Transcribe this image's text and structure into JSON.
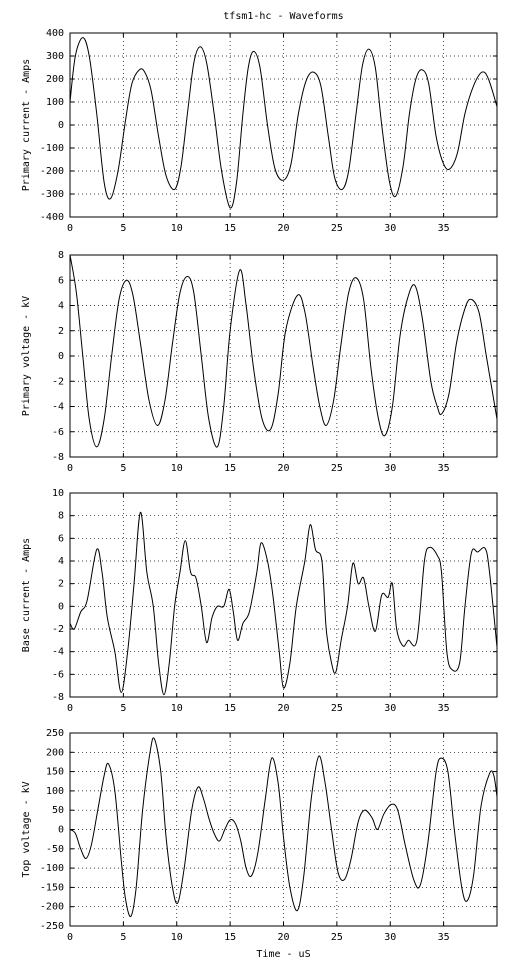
{
  "chart_data": [
    {
      "type": "line",
      "title": "tfsm1-hc - Waveforms",
      "ylabel": "Primary current - Amps",
      "color": "#000000",
      "grid": true,
      "xlim": [
        0,
        40
      ],
      "xticks": [
        0,
        5,
        10,
        15,
        20,
        25,
        30,
        35
      ],
      "ylim": [
        -400,
        400
      ],
      "yticks": [
        -400,
        -300,
        -200,
        -100,
        0,
        100,
        200,
        300,
        400
      ],
      "x": [
        0,
        0.5,
        1.2,
        1.8,
        2.5,
        3.2,
        3.8,
        4.5,
        5.2,
        5.8,
        6.5,
        7.0,
        7.6,
        8.3,
        9.0,
        9.8,
        10.4,
        11.0,
        11.6,
        12.2,
        12.8,
        13.5,
        14.2,
        15.0,
        15.6,
        16.2,
        16.7,
        17.2,
        17.8,
        18.5,
        19.2,
        20.0,
        20.7,
        21.4,
        22.1,
        22.8,
        23.5,
        24.2,
        24.8,
        25.5,
        26.1,
        26.8,
        27.4,
        28.0,
        28.6,
        29.2,
        29.9,
        30.5,
        31.2,
        31.8,
        32.4,
        33.0,
        33.6,
        34.3,
        35.0,
        35.6,
        36.3,
        37.0,
        37.8,
        38.6,
        39.2,
        40
      ],
      "values": [
        100,
        300,
        380,
        300,
        50,
        -250,
        -320,
        -200,
        20,
        180,
        240,
        230,
        150,
        -50,
        -220,
        -280,
        -180,
        50,
        270,
        340,
        270,
        50,
        -200,
        -360,
        -250,
        50,
        250,
        320,
        250,
        0,
        -190,
        -240,
        -170,
        50,
        190,
        230,
        170,
        -50,
        -230,
        -280,
        -200,
        50,
        260,
        330,
        250,
        0,
        -240,
        -310,
        -180,
        50,
        200,
        240,
        180,
        -50,
        -170,
        -190,
        -120,
        50,
        170,
        230,
        200,
        80
      ]
    },
    {
      "type": "line",
      "ylabel": "Primary voltage - kV",
      "color": "#000000",
      "grid": true,
      "xlim": [
        0,
        40
      ],
      "xticks": [
        0,
        5,
        10,
        15,
        20,
        25,
        30,
        35
      ],
      "ylim": [
        -8,
        8
      ],
      "yticks": [
        -8,
        -6,
        -4,
        -2,
        0,
        2,
        4,
        6,
        8
      ],
      "x": [
        0,
        0.6,
        1.2,
        1.8,
        2.5,
        3.2,
        3.9,
        4.6,
        5.3,
        5.9,
        6.6,
        7.4,
        8.2,
        8.9,
        9.6,
        10.3,
        11.0,
        11.6,
        12.3,
        13.0,
        13.8,
        14.4,
        15.0,
        15.9,
        16.5,
        17.2,
        18.0,
        18.8,
        19.5,
        20.2,
        21.3,
        22.0,
        22.8,
        23.4,
        24.0,
        24.7,
        25.4,
        26.1,
        26.8,
        27.5,
        28.2,
        28.9,
        29.5,
        30.2,
        30.9,
        31.6,
        32.3,
        33.0,
        33.8,
        34.4,
        34.8,
        35.5,
        36.2,
        36.9,
        37.5,
        38.3,
        39.0,
        39.6,
        40
      ],
      "values": [
        8,
        5,
        0,
        -5,
        -7.2,
        -5,
        0,
        4.5,
        6,
        4.8,
        1,
        -3.5,
        -5.5,
        -3.5,
        1,
        5,
        6.3,
        5,
        0,
        -5,
        -7.2,
        -4,
        2,
        6.8,
        4,
        -1,
        -5,
        -5.8,
        -3,
        2,
        4.8,
        3.5,
        -1,
        -4,
        -5.5,
        -3.5,
        1,
        5,
        6.2,
        4.5,
        -1,
        -5,
        -6.3,
        -4,
        1.5,
        4.5,
        5.6,
        3,
        -2,
        -4,
        -4.6,
        -3,
        1,
        3.5,
        4.5,
        3.5,
        0,
        -3,
        -5
      ]
    },
    {
      "type": "line",
      "ylabel": "Base current - Amps",
      "color": "#000000",
      "grid": true,
      "xlim": [
        0,
        40
      ],
      "xticks": [
        0,
        5,
        10,
        15,
        20,
        25,
        30,
        35
      ],
      "ylim": [
        -8,
        10
      ],
      "yticks": [
        -8,
        -6,
        -4,
        -2,
        0,
        2,
        4,
        6,
        8,
        10
      ],
      "x": [
        0,
        0.4,
        1.0,
        1.6,
        2.5,
        3.0,
        3.5,
        4.2,
        4.8,
        5.4,
        6.0,
        6.6,
        7.2,
        7.8,
        8.3,
        8.8,
        9.3,
        9.8,
        10.3,
        10.8,
        11.3,
        11.8,
        12.3,
        12.8,
        13.3,
        13.8,
        14.4,
        14.9,
        15.3,
        15.7,
        16.2,
        16.8,
        17.5,
        17.9,
        18.5,
        19.0,
        19.6,
        20.0,
        20.6,
        21.2,
        22.0,
        22.5,
        23.0,
        23.6,
        24.0,
        24.5,
        24.9,
        25.4,
        26.0,
        26.5,
        27.0,
        27.5,
        28.0,
        28.6,
        29.2,
        29.8,
        30.2,
        30.6,
        31.2,
        31.7,
        32.5,
        33.2,
        33.7,
        34.4,
        34.8,
        35.3,
        35.8,
        36.5,
        37.0,
        37.6,
        38.2,
        38.9,
        39.3,
        40
      ],
      "values": [
        -1.5,
        -2,
        -0.5,
        0.5,
        5,
        3,
        -1,
        -4,
        -7.6,
        -4,
        2,
        8.3,
        3,
        0,
        -5,
        -7.8,
        -5,
        0,
        3,
        5.8,
        3,
        2.5,
        0,
        -3.2,
        -1,
        0,
        0,
        1.5,
        -0.5,
        -3,
        -1.5,
        -0.5,
        3,
        5.6,
        4,
        1,
        -4,
        -7.2,
        -5,
        0,
        4,
        7.2,
        5,
        4,
        -2,
        -5,
        -5.8,
        -3,
        0,
        3.8,
        2,
        2.5,
        0,
        -2.2,
        1,
        0.8,
        2,
        -2,
        -3.5,
        -3,
        -3,
        4,
        5.2,
        4.5,
        3,
        -4,
        -5.6,
        -5,
        0,
        4.7,
        4.8,
        5.1,
        3,
        -3.6
      ]
    },
    {
      "type": "line",
      "ylabel": "Top voltage - kV",
      "xlabel": "Time - uS",
      "color": "#000000",
      "grid": true,
      "xlim": [
        0,
        40
      ],
      "xticks": [
        0,
        5,
        10,
        15,
        20,
        25,
        30,
        35
      ],
      "ylim": [
        -250,
        250
      ],
      "yticks": [
        -250,
        -200,
        -150,
        -100,
        -50,
        0,
        50,
        100,
        150,
        200,
        250
      ],
      "x": [
        0,
        0.5,
        1.0,
        1.5,
        2.0,
        2.6,
        3.2,
        3.6,
        4.2,
        4.8,
        5.2,
        5.7,
        6.2,
        6.8,
        7.5,
        7.9,
        8.5,
        9.0,
        9.6,
        10.1,
        10.7,
        11.4,
        12.0,
        12.5,
        13.0,
        13.5,
        14.0,
        14.5,
        15.0,
        15.5,
        16.0,
        16.5,
        17.0,
        17.6,
        18.3,
        18.9,
        19.5,
        20.0,
        20.6,
        21.3,
        21.9,
        22.6,
        23.3,
        23.9,
        24.5,
        25.1,
        25.7,
        26.3,
        27.0,
        27.6,
        28.3,
        28.8,
        29.4,
        30.1,
        30.7,
        31.4,
        32.2,
        32.8,
        33.5,
        34.3,
        34.8,
        35.4,
        36.0,
        36.7,
        37.2,
        37.8,
        38.5,
        39.3,
        39.7,
        40
      ],
      "values": [
        0,
        -10,
        -50,
        -75,
        -40,
        50,
        140,
        170,
        100,
        -80,
        -180,
        -225,
        -150,
        50,
        200,
        235,
        150,
        -20,
        -150,
        -190,
        -100,
        50,
        110,
        80,
        30,
        -10,
        -30,
        0,
        25,
        15,
        -30,
        -100,
        -120,
        -60,
        80,
        185,
        120,
        -20,
        -150,
        -210,
        -120,
        80,
        190,
        120,
        0,
        -110,
        -130,
        -80,
        20,
        50,
        30,
        0,
        40,
        65,
        50,
        -40,
        -130,
        -145,
        -40,
        150,
        185,
        150,
        0,
        -150,
        -185,
        -120,
        60,
        145,
        140,
        85
      ]
    }
  ]
}
